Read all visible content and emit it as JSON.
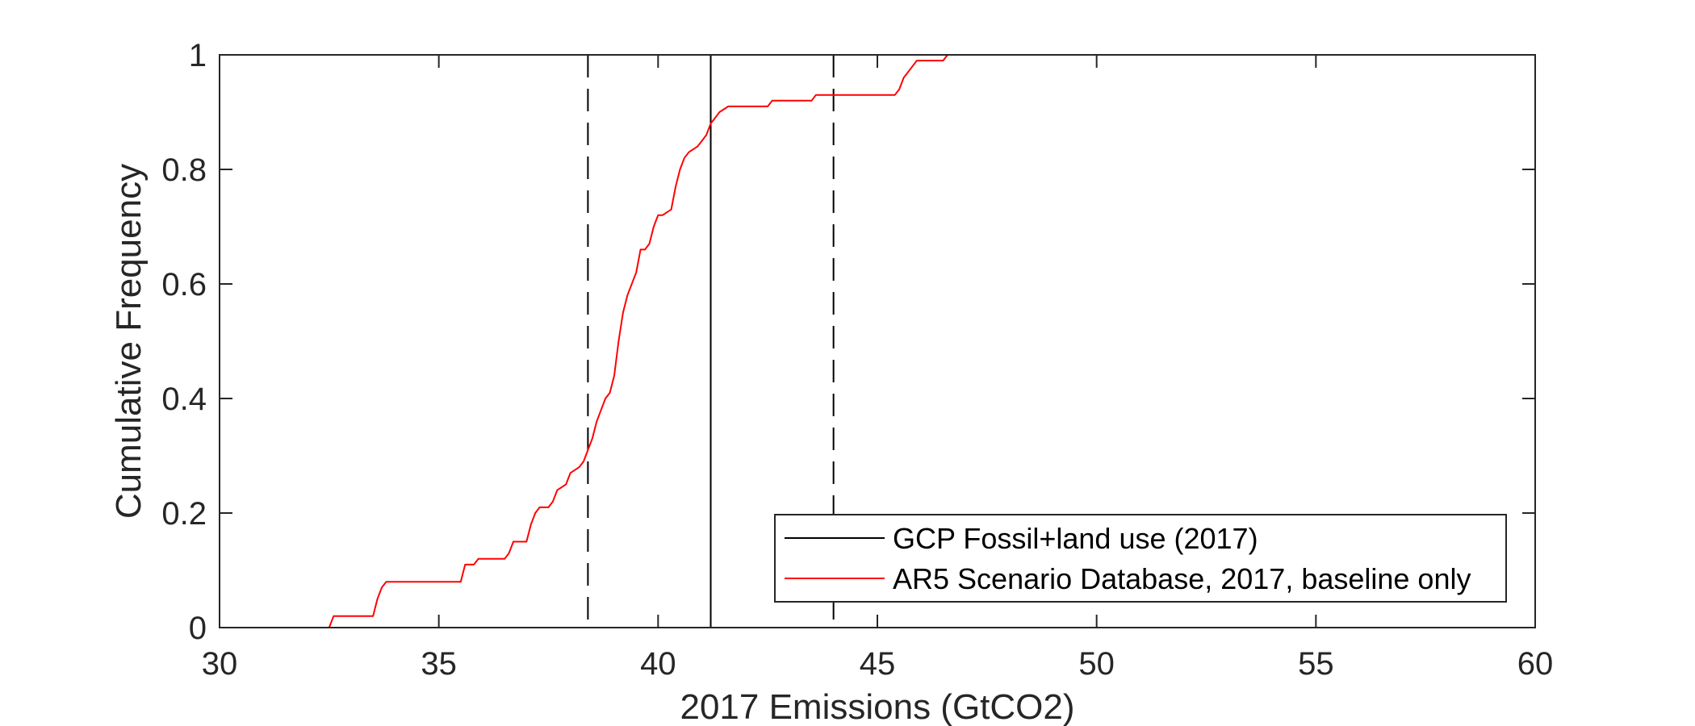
{
  "chart_data": {
    "type": "line",
    "xlabel": "2017 Emissions (GtCO2)",
    "ylabel": "Cumulative Frequency",
    "xlim": [
      30,
      60
    ],
    "ylim": [
      0,
      1
    ],
    "xticks": [
      "30",
      "35",
      "40",
      "45",
      "50",
      "55",
      "60"
    ],
    "yticks": [
      "0",
      "0.2",
      "0.4",
      "0.6",
      "0.8",
      "1"
    ],
    "grid": false,
    "legend_position": "bottom-right",
    "reference_lines": [
      {
        "name": "GCP Fossil+land use (2017)",
        "x": 41.2,
        "style": "solid",
        "color": "#000000"
      },
      {
        "x": 38.4,
        "style": "dashed",
        "color": "#000000"
      },
      {
        "x": 44.0,
        "style": "dashed",
        "color": "#000000"
      }
    ],
    "series": [
      {
        "name": "AR5 Scenario Database, 2017, baseline only",
        "color": "#ff0000",
        "x": [
          30,
          32.5,
          32.6,
          33.5,
          33.6,
          33.7,
          33.8,
          35.5,
          35.6,
          35.8,
          35.9,
          36.5,
          36.6,
          36.7,
          37.0,
          37.1,
          37.2,
          37.3,
          37.5,
          37.6,
          37.7,
          37.9,
          38.0,
          38.2,
          38.3,
          38.4,
          38.5,
          38.6,
          38.7,
          38.8,
          38.9,
          39.0,
          39.1,
          39.2,
          39.3,
          39.5,
          39.6,
          39.7,
          39.8,
          39.9,
          40.0,
          40.1,
          40.3,
          40.4,
          40.5,
          40.6,
          40.7,
          40.9,
          41.0,
          41.1,
          41.2,
          41.3,
          41.4,
          41.6,
          41.7,
          42.5,
          42.6,
          43.5,
          43.6,
          45.4,
          45.5,
          45.6,
          45.8,
          45.9,
          46.0,
          46.5,
          46.6,
          46.7,
          60
        ],
        "y": [
          0,
          0,
          0.02,
          0.02,
          0.05,
          0.07,
          0.08,
          0.08,
          0.11,
          0.11,
          0.12,
          0.12,
          0.13,
          0.15,
          0.15,
          0.18,
          0.2,
          0.21,
          0.21,
          0.22,
          0.24,
          0.25,
          0.27,
          0.28,
          0.29,
          0.31,
          0.33,
          0.36,
          0.38,
          0.4,
          0.41,
          0.44,
          0.5,
          0.55,
          0.58,
          0.62,
          0.66,
          0.66,
          0.67,
          0.7,
          0.72,
          0.72,
          0.73,
          0.77,
          0.8,
          0.82,
          0.83,
          0.84,
          0.85,
          0.86,
          0.88,
          0.89,
          0.9,
          0.91,
          0.91,
          0.91,
          0.92,
          0.92,
          0.93,
          0.93,
          0.94,
          0.96,
          0.98,
          0.99,
          0.99,
          0.99,
          1.0,
          1.0,
          1.0
        ]
      }
    ]
  }
}
